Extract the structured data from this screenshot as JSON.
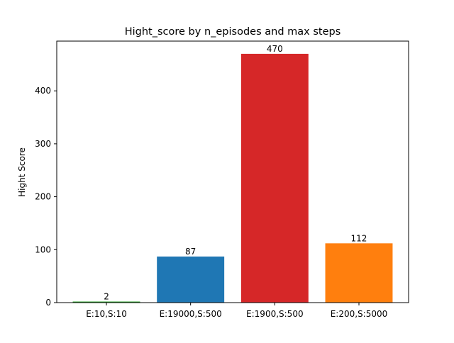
{
  "chart_data": {
    "type": "bar",
    "title": "Hight_score by n_episodes and max steps",
    "xlabel": "",
    "ylabel": "Hight Score",
    "categories": [
      "E:10,S:10",
      "E:19000,S:500",
      "E:1900,S:500",
      "E:200,S:5000"
    ],
    "values": [
      2,
      87,
      470,
      112
    ],
    "data_labels": [
      "2",
      "87",
      "470",
      "112"
    ],
    "colors": [
      "#2ca02c",
      "#1f77b4",
      "#d62728",
      "#ff7f0e"
    ],
    "ylim": [
      0,
      494
    ],
    "yticks": [
      0,
      100,
      200,
      300,
      400
    ],
    "grid": false,
    "legend": "none"
  }
}
